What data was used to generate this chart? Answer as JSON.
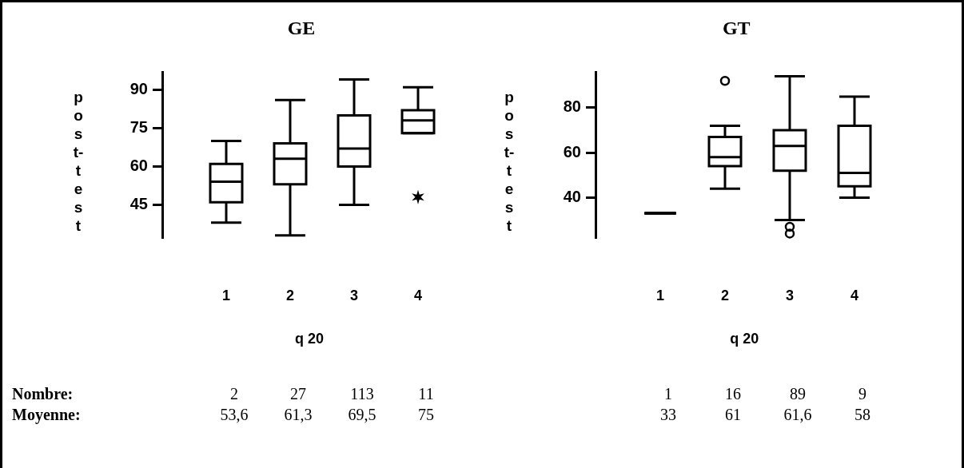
{
  "chart_data": [
    {
      "type": "box",
      "title": "GE",
      "xlabel": "q 20",
      "ylabel": "post-test",
      "categories": [
        "1",
        "2",
        "3",
        "4"
      ],
      "ylim": [
        32,
        97
      ],
      "yticks": [
        45,
        60,
        75,
        90
      ],
      "grid": false,
      "legend": false,
      "marker": "star",
      "boxes": [
        {
          "low": 38,
          "q1": 46,
          "median": 54,
          "q3": 61,
          "high": 70
        },
        {
          "low": 33,
          "q1": 53,
          "median": 63,
          "q3": 69,
          "high": 86
        },
        {
          "low": 45,
          "q1": 60,
          "median": 67,
          "q3": 80,
          "high": 94
        },
        {
          "low": 73,
          "q1": 73,
          "median": 78,
          "q3": 82,
          "high": 91,
          "outliers": [
            48
          ]
        }
      ],
      "annotations": [
        "Nombre:",
        "Moyenne:",
        "2",
        "27",
        "113",
        "11",
        "53,6",
        "61,3",
        "69,5",
        "75"
      ]
    },
    {
      "type": "box",
      "title": "GT",
      "xlabel": "q 20",
      "ylabel": "post-test",
      "categories": [
        "1",
        "2",
        "3",
        "4"
      ],
      "ylim": [
        22,
        96
      ],
      "yticks": [
        40,
        60,
        80
      ],
      "grid": false,
      "legend": false,
      "marker": "circle",
      "boxes": [
        {
          "low": 33,
          "q1": 33,
          "median": 33,
          "q3": 33,
          "high": 33
        },
        {
          "low": 44,
          "q1": 54,
          "median": 58,
          "q3": 67,
          "high": 72,
          "outliers": [
            92
          ]
        },
        {
          "low": 30,
          "q1": 52,
          "median": 63,
          "q3": 70,
          "high": 94,
          "outliers": [
            27,
            24
          ]
        },
        {
          "low": 40,
          "q1": 45,
          "median": 51,
          "q3": 72,
          "high": 85
        }
      ],
      "annotations": [
        "1",
        "16",
        "89",
        "9",
        "33",
        "61",
        "61,6",
        "58"
      ]
    }
  ]
}
